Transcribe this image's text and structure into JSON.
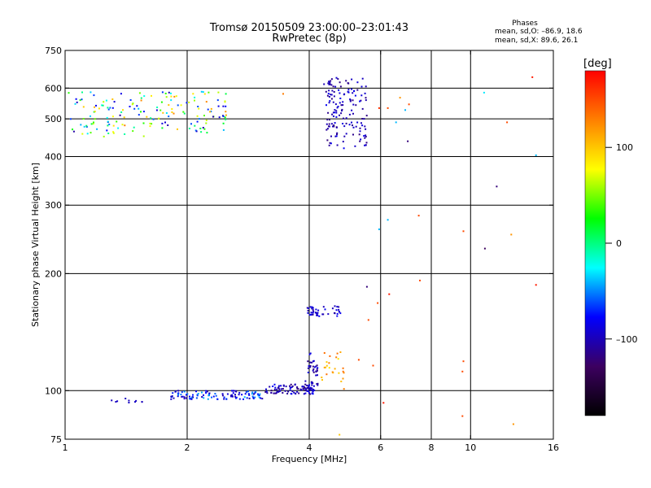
{
  "header": {
    "title_line1": "Tromsø 20150509 23:00:00–23:01:43",
    "title_line2": "RwPretec (8p)",
    "phases_title": "Phases",
    "phases_o": "mean, sd,O: –86.9, 18.6",
    "phases_x": "mean, sd,X: 89.6, 26.1"
  },
  "colorbar": {
    "label": "[deg]",
    "ticks": [
      {
        "value": 100,
        "label": "100"
      },
      {
        "value": 0,
        "label": "0"
      },
      {
        "value": -100,
        "label": "–100"
      }
    ],
    "range": [
      -180,
      180
    ],
    "colors": [
      "#000000",
      "#3c0060",
      "#0000ff",
      "#00ffff",
      "#00ff00",
      "#ffff00",
      "#ff8000",
      "#ff0000"
    ]
  },
  "chart_data": {
    "type": "scatter",
    "title": "Tromsø 20150509 23:00:00–23:01:43",
    "subtitle": "RwPretec (8p)",
    "xlabel": "Frequency [MHz]",
    "ylabel": "Stationary phase Virtual Height [km]",
    "x_scale": "log",
    "y_scale": "log",
    "xlim": [
      1,
      16
    ],
    "ylim": [
      75,
      750
    ],
    "x_ticks": [
      {
        "value": 1,
        "label": "1"
      },
      {
        "value": 2,
        "label": "2"
      },
      {
        "value": 4,
        "label": "4"
      },
      {
        "value": 6,
        "label": "6"
      },
      {
        "value": 8,
        "label": "8"
      },
      {
        "value": 10,
        "label": "10"
      },
      {
        "value": 16,
        "label": "16"
      }
    ],
    "y_ticks": [
      {
        "value": 75,
        "label": "75"
      },
      {
        "value": 100,
        "label": "100"
      },
      {
        "value": 200,
        "label": "200"
      },
      {
        "value": 300,
        "label": "300"
      },
      {
        "value": 400,
        "label": "400"
      },
      {
        "value": 500,
        "label": "500"
      },
      {
        "value": 600,
        "label": "600"
      },
      {
        "value": 750,
        "label": "750"
      }
    ],
    "grid_x": [
      2,
      4,
      6,
      8,
      10
    ],
    "grid_y": [
      100,
      200,
      300,
      400,
      500,
      600
    ],
    "color_variable": "phase [deg]",
    "clusters": [
      {
        "x": [
          1.02,
          2.5
        ],
        "y": [
          450,
          590
        ],
        "phase": [
          -110,
          130
        ],
        "count": 170
      },
      {
        "x": [
          4.4,
          5.55
        ],
        "y": [
          420,
          640
        ],
        "phase": [
          -120,
          -80
        ],
        "count": 150
      },
      {
        "x": [
          1.3,
          1.55
        ],
        "y": [
          93,
          96
        ],
        "phase": [
          -100,
          -95
        ],
        "count": 10
      },
      {
        "x": [
          1.8,
          3.1
        ],
        "y": [
          95,
          100
        ],
        "phase": [
          -110,
          -40
        ],
        "count": 110
      },
      {
        "x": [
          3.1,
          4.1
        ],
        "y": [
          98,
          104
        ],
        "phase": [
          -120,
          -80
        ],
        "count": 90
      },
      {
        "x": [
          3.9,
          4.2
        ],
        "y": [
          100,
          125
        ],
        "phase": [
          -120,
          -80
        ],
        "count": 40
      },
      {
        "x": [
          3.95,
          4.8
        ],
        "y": [
          155,
          165
        ],
        "phase": [
          -110,
          -80
        ],
        "count": 45
      },
      {
        "x": [
          4.25,
          4.95
        ],
        "y": [
          101,
          127
        ],
        "phase": [
          80,
          140
        ],
        "count": 25
      }
    ],
    "points": [
      {
        "x": 3.45,
        "y": 580,
        "phase": 130
      },
      {
        "x": 4.35,
        "y": 614,
        "phase": -100
      },
      {
        "x": 5.95,
        "y": 533,
        "phase": 160
      },
      {
        "x": 6.25,
        "y": 533,
        "phase": 150
      },
      {
        "x": 6.9,
        "y": 527,
        "phase": -40
      },
      {
        "x": 7.05,
        "y": 545,
        "phase": 150
      },
      {
        "x": 6.55,
        "y": 490,
        "phase": -40
      },
      {
        "x": 7.0,
        "y": 438,
        "phase": -120
      },
      {
        "x": 6.7,
        "y": 567,
        "phase": 120
      },
      {
        "x": 10.8,
        "y": 584,
        "phase": -30
      },
      {
        "x": 12.3,
        "y": 490,
        "phase": 150
      },
      {
        "x": 14.2,
        "y": 640,
        "phase": 170
      },
      {
        "x": 14.5,
        "y": 403,
        "phase": -40
      },
      {
        "x": 11.6,
        "y": 335,
        "phase": -120
      },
      {
        "x": 5.95,
        "y": 260,
        "phase": -40
      },
      {
        "x": 6.25,
        "y": 275,
        "phase": -40
      },
      {
        "x": 7.45,
        "y": 282,
        "phase": 150
      },
      {
        "x": 9.6,
        "y": 257,
        "phase": 150
      },
      {
        "x": 12.6,
        "y": 252,
        "phase": 120
      },
      {
        "x": 10.85,
        "y": 232,
        "phase": -130
      },
      {
        "x": 5.55,
        "y": 185,
        "phase": -120
      },
      {
        "x": 6.3,
        "y": 177,
        "phase": 170
      },
      {
        "x": 7.5,
        "y": 192,
        "phase": 150
      },
      {
        "x": 14.5,
        "y": 187,
        "phase": 170
      },
      {
        "x": 5.6,
        "y": 152,
        "phase": 150
      },
      {
        "x": 5.9,
        "y": 168,
        "phase": 150
      },
      {
        "x": 5.3,
        "y": 120,
        "phase": 150
      },
      {
        "x": 5.75,
        "y": 116,
        "phase": 150
      },
      {
        "x": 9.6,
        "y": 119,
        "phase": 150
      },
      {
        "x": 9.55,
        "y": 112,
        "phase": 150
      },
      {
        "x": 6.1,
        "y": 93,
        "phase": 170
      },
      {
        "x": 9.55,
        "y": 86,
        "phase": 150
      },
      {
        "x": 12.75,
        "y": 82,
        "phase": 120
      },
      {
        "x": 4.75,
        "y": 77,
        "phase": 100
      }
    ]
  }
}
